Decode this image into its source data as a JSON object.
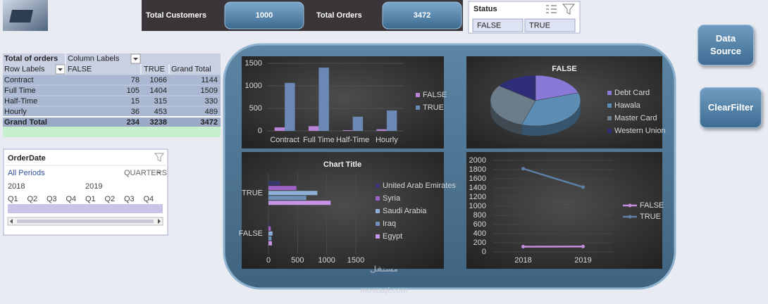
{
  "kpis": [
    {
      "label": "Total Customers",
      "value": "1000"
    },
    {
      "label": "Total Orders",
      "value": "3472"
    }
  ],
  "status_slicer": {
    "title": "Status",
    "items": [
      "FALSE",
      "TRUE"
    ]
  },
  "pivot": {
    "corner": "Total of orders",
    "column_labels": "Column Labels",
    "row_labels": "Row Labels",
    "columns": [
      "FALSE",
      "TRUE",
      "Grand Total"
    ],
    "rows": [
      {
        "label": "Contract",
        "values": [
          "78",
          "1066",
          "1144"
        ]
      },
      {
        "label": "Full Time",
        "values": [
          "105",
          "1404",
          "1509"
        ]
      },
      {
        "label": "Half-Time",
        "values": [
          "15",
          "315",
          "330"
        ]
      },
      {
        "label": "Hourly",
        "values": [
          "36",
          "453",
          "489"
        ]
      }
    ],
    "total": {
      "label": "Grand Total",
      "values": [
        "234",
        "3238",
        "3472"
      ]
    }
  },
  "timeline": {
    "title": "OrderDate",
    "period": "All Periods",
    "level": "QUARTERS",
    "years": [
      "2018",
      "2019"
    ],
    "quarters": [
      "Q1",
      "Q2",
      "Q3",
      "Q4",
      "Q1",
      "Q2",
      "Q3",
      "Q4"
    ]
  },
  "buttons": [
    "Data Source",
    "ClearFilter"
  ],
  "watermark": {
    "arabic": "مستقل",
    "latin": "mostaql.com"
  },
  "chart_data": [
    {
      "type": "bar",
      "categories": [
        "Contract",
        "Full Time",
        "Half-Time",
        "Hourly"
      ],
      "series": [
        {
          "name": "FALSE",
          "color": "#b784d6",
          "values": [
            78,
            105,
            15,
            36
          ]
        },
        {
          "name": "TRUE",
          "color": "#6c88b5",
          "values": [
            1066,
            1404,
            315,
            453
          ]
        }
      ],
      "ylim": [
        0,
        1500
      ],
      "yticks": [
        0,
        500,
        1000,
        1500
      ],
      "grid": true,
      "legend": "right"
    },
    {
      "type": "pie",
      "title": "FALSE",
      "categories": [
        "Debt Card",
        "Hawala",
        "Master Card",
        "Western Union"
      ],
      "values": [
        20,
        35,
        30,
        15
      ],
      "colors": [
        "#8a78d8",
        "#5b8db5",
        "#6b7c8a",
        "#2f2e78"
      ],
      "legend": "right"
    },
    {
      "type": "barh",
      "title": "Chart Title",
      "categories": [
        "FALSE",
        "TRUE"
      ],
      "series": [
        {
          "name": "United Arab Emirates",
          "color": "#34386e",
          "values": [
            12,
            200
          ]
        },
        {
          "name": "Syria",
          "color": "#a062c8",
          "values": [
            40,
            480
          ]
        },
        {
          "name": "Saudi Arabia",
          "color": "#8fb0d6",
          "values": [
            70,
            840
          ]
        },
        {
          "name": "Iraq",
          "color": "#6d8fb8",
          "values": [
            52,
            650
          ]
        },
        {
          "name": "Egypt",
          "color": "#c793e6",
          "values": [
            60,
            1068
          ]
        }
      ],
      "xlim": [
        0,
        1500
      ],
      "xticks": [
        0,
        500,
        1000,
        1500
      ],
      "grid": true,
      "legend": "right"
    },
    {
      "type": "line",
      "categories": [
        "2018",
        "2019"
      ],
      "series": [
        {
          "name": "FALSE",
          "color": "#c48de0",
          "values": [
            115,
            119
          ]
        },
        {
          "name": "TRUE",
          "color": "#5e7fa8",
          "values": [
            1820,
            1418
          ]
        }
      ],
      "ylim": [
        0,
        2000
      ],
      "yticks": [
        0,
        200,
        400,
        600,
        800,
        1000,
        1200,
        1400,
        1600,
        1800,
        2000
      ],
      "grid": true,
      "legend": "right"
    }
  ]
}
